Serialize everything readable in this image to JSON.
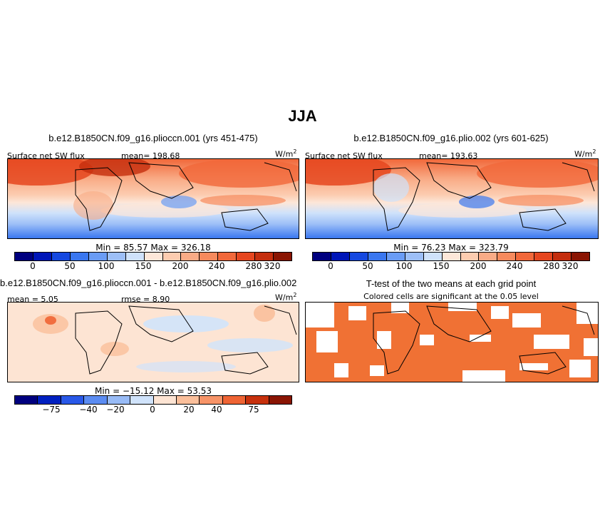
{
  "figure": {
    "title": "JJA"
  },
  "panels": [
    {
      "title": "b.e12.B1850CN.f09_g16.plioccn.001 (yrs 451-475)",
      "variable": "Surface net SW flux",
      "mean": "mean= 198.68",
      "units": "W/m",
      "units_sup": "2",
      "minmax": "Min =  85.57 Max = 326.18"
    },
    {
      "title": "b.e12.B1850CN.f09_g16.plio.002 (yrs 601-625)",
      "variable": "Surface net SW flux",
      "mean": "mean= 193.63",
      "units": "W/m",
      "units_sup": "2",
      "minmax": "Min =  76.23 Max = 323.79"
    },
    {
      "title": "b.e12.B1850CN.f09_g16.plioccn.001 - b.e12.B1850CN.f09_g16.plio.002",
      "mean": "mean =  5.05",
      "rmse": "rmse =  8.90",
      "units": "W/m",
      "units_sup": "2",
      "minmax": "Min = −15.12 Max =  53.53"
    },
    {
      "title": "T-test of the two means at each grid point",
      "subtitle": "Colored cells are significant at the 0.05 level"
    }
  ],
  "colors": {
    "abs": [
      "#00007f",
      "#0016b8",
      "#1548e0",
      "#3a77f0",
      "#6a9cf5",
      "#9dbff7",
      "#cfe2fb",
      "#fde7d9",
      "#fcccb0",
      "#f9ab86",
      "#f68a5d",
      "#f1683a",
      "#e5461f",
      "#c42e0e",
      "#8a1503"
    ],
    "diff": [
      "#00007f",
      "#0020c0",
      "#2958e8",
      "#5b8cf2",
      "#98bbf6",
      "#d0e3fb",
      "#fde4d3",
      "#fabf9b",
      "#f79468",
      "#ef6434",
      "#c7310d",
      "#8a1503"
    ],
    "sig": "#f07134"
  },
  "chart_data": [
    {
      "type": "heatmap",
      "title": "b.e12.B1850CN.f09_g16.plioccn.001 (yrs 451-475)",
      "variable": "Surface net SW flux",
      "units": "W/m2",
      "mean": 198.68,
      "min": 85.57,
      "max": 326.18,
      "colorbar_ticks": [
        "0",
        "50",
        "100",
        "150",
        "200",
        "240",
        "280",
        "320"
      ],
      "colorbar_levels": [
        0,
        25,
        50,
        75,
        100,
        125,
        150,
        175,
        200,
        220,
        240,
        260,
        280,
        300,
        320
      ]
    },
    {
      "type": "heatmap",
      "title": "b.e12.B1850CN.f09_g16.plio.002 (yrs 601-625)",
      "variable": "Surface net SW flux",
      "units": "W/m2",
      "mean": 193.63,
      "min": 76.23,
      "max": 323.79,
      "colorbar_ticks": [
        "0",
        "50",
        "100",
        "150",
        "200",
        "240",
        "280",
        "320"
      ],
      "colorbar_levels": [
        0,
        25,
        50,
        75,
        100,
        125,
        150,
        175,
        200,
        220,
        240,
        260,
        280,
        300,
        320
      ]
    },
    {
      "type": "heatmap",
      "title": "b.e12.B1850CN.f09_g16.plioccn.001 - b.e12.B1850CN.f09_g16.plio.002",
      "units": "W/m2",
      "mean": 5.05,
      "rmse": 8.9,
      "min": -15.12,
      "max": 53.53,
      "colorbar_ticks": [
        "−75",
        "−40",
        "−20",
        "0",
        "20",
        "40",
        "75"
      ],
      "colorbar_levels": [
        -100,
        -75,
        -60,
        -40,
        -30,
        -20,
        -10,
        0,
        10,
        20,
        30,
        40,
        60,
        75,
        100
      ]
    },
    {
      "type": "heatmap",
      "title": "T-test of the two means at each grid point",
      "subtitle": "Colored cells are significant at the 0.05 level"
    }
  ]
}
